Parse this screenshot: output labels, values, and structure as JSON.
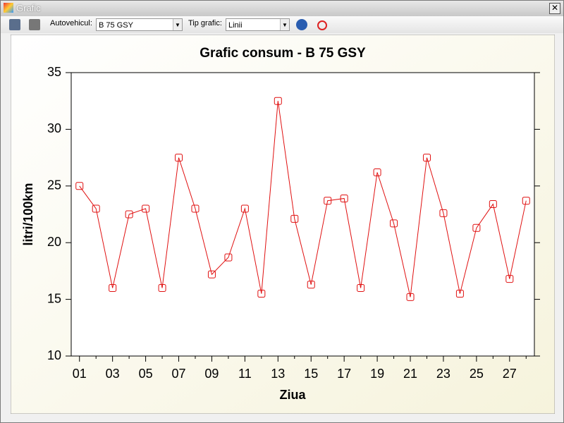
{
  "window": {
    "title": "Grafic"
  },
  "toolbar": {
    "vehicle_label": "Autovehicul:",
    "vehicle_value": "B 75 GSY",
    "type_label": "Tip grafic:",
    "type_value": "Linii"
  },
  "chart_data": {
    "type": "line",
    "title": "Grafic consum - B 75 GSY",
    "x_label": "Ziua",
    "y_label": "litri/100km",
    "categories": [
      "01",
      null,
      "03",
      null,
      "05",
      null,
      "07",
      null,
      "09",
      null,
      "11",
      null,
      "13",
      null,
      "15",
      null,
      "17",
      null,
      "19",
      null,
      "21",
      null,
      "23",
      null,
      "25",
      null,
      "27",
      null
    ],
    "series": [
      {
        "name": "consum",
        "color": "#e01010",
        "values": [
          25.0,
          23.0,
          16.0,
          22.5,
          23.0,
          16.0,
          27.5,
          23.0,
          17.2,
          18.7,
          23.0,
          15.5,
          32.5,
          22.1,
          16.3,
          23.7,
          23.9,
          16.0,
          26.2,
          21.7,
          15.2,
          27.5,
          22.6,
          15.5,
          21.3,
          23.4,
          16.8,
          23.7
        ]
      }
    ],
    "ylim": [
      10,
      35
    ],
    "yticks": [
      10,
      15,
      20,
      25,
      30,
      35
    ]
  }
}
